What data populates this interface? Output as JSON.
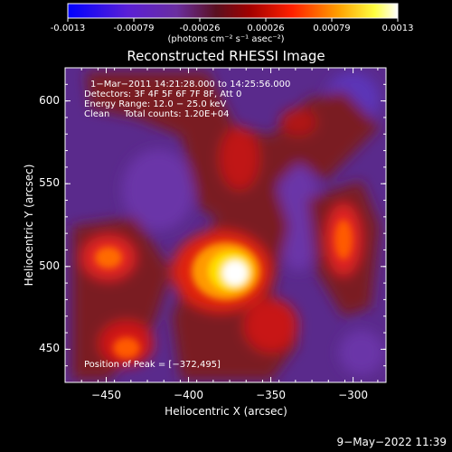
{
  "colorbar": {
    "ticks": [
      "-0.0013",
      "-0.00079",
      "-0.00026",
      "0.00026",
      "0.00079",
      "0.0013"
    ],
    "unit_label": "(photons cm⁻² s⁻¹ asec⁻²)"
  },
  "chart_data": {
    "type": "heatmap",
    "title": "Reconstructed RHESSI Image",
    "xlabel": "Heliocentric X (arcsec)",
    "ylabel": "Heliocentric Y (arcsec)",
    "xlim": [
      -475,
      -280
    ],
    "ylim": [
      430,
      620
    ],
    "x_ticks": [
      "−450",
      "−400",
      "−350",
      "−300"
    ],
    "x_tick_values": [
      -450,
      -400,
      -350,
      -300
    ],
    "y_ticks": [
      "450",
      "500",
      "550",
      "600"
    ],
    "y_tick_values": [
      450,
      500,
      550,
      600
    ],
    "value_range": [
      -0.0013,
      0.0013
    ],
    "colormap": [
      "#0000ff",
      "#6a2ea0",
      "#7a1a1a",
      "#ff0000",
      "#ffa500",
      "#ffff00",
      "#ffffff"
    ],
    "annotations": {
      "time": "1−Mar−2011 14:21:28.000 to 14:25:56.000",
      "detectors": "Detectors: 3F 4F 5F 6F 7F 8F, Att 0",
      "energy": "Energy Range: 12.0 − 25.0 keV",
      "clean": "Clean     Total counts: 1.20E+04",
      "peak": "Position of Peak = [−372,495]"
    },
    "peak_position": [
      -372,
      495
    ]
  },
  "footer": {
    "date": "9−May−2022 11:39"
  }
}
